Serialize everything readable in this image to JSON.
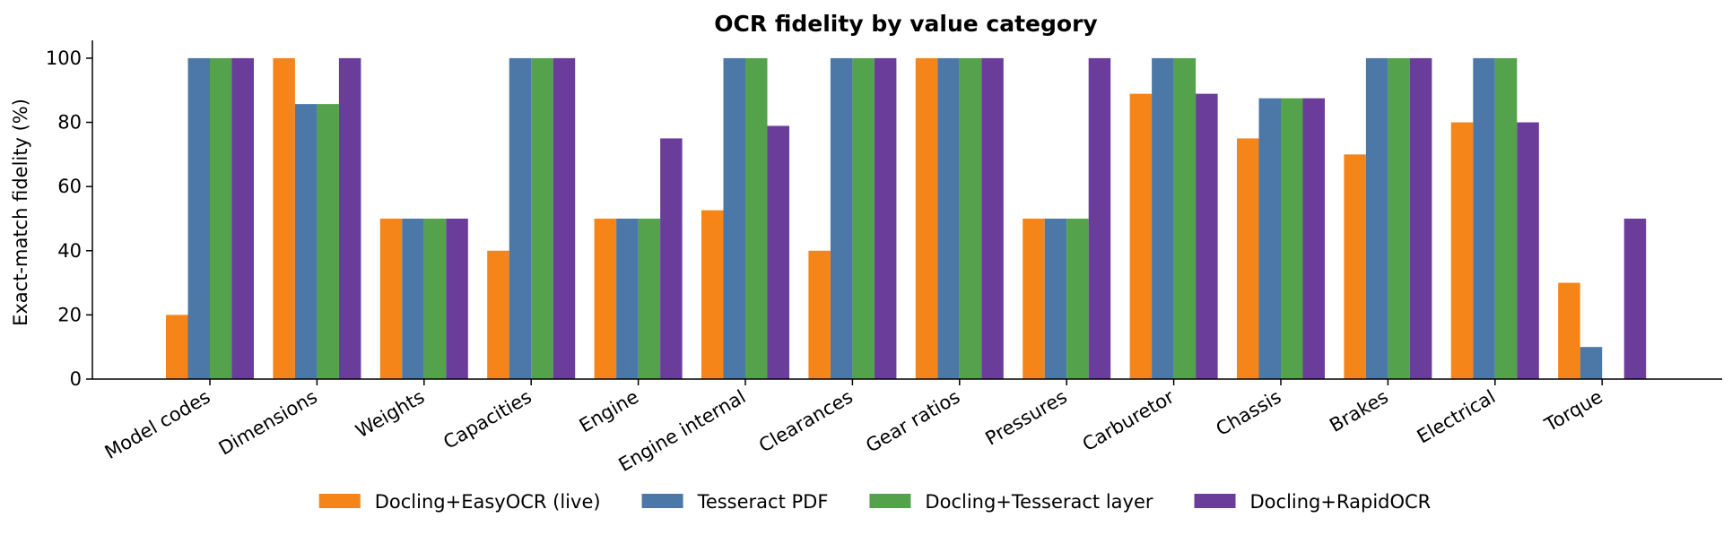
{
  "chart_data": {
    "type": "bar",
    "title": "OCR fidelity by value category",
    "xlabel": "",
    "ylabel": "Exact-match fidelity (%)",
    "ylim": [
      0,
      105
    ],
    "yticks": [
      0,
      20,
      40,
      60,
      80,
      100
    ],
    "grid": false,
    "legend_position": "bottom",
    "categories": [
      "Model codes",
      "Dimensions",
      "Weights",
      "Capacities",
      "Engine",
      "Engine internal",
      "Clearances",
      "Gear ratios",
      "Pressures",
      "Carburetor",
      "Chassis",
      "Brakes",
      "Electrical",
      "Torque"
    ],
    "series": [
      {
        "name": "Docling+EasyOCR (live)",
        "color": "#f58518",
        "values": [
          20,
          100,
          50,
          40,
          50,
          52.6,
          40,
          100,
          50,
          88.9,
          75,
          70,
          80,
          30
        ]
      },
      {
        "name": "Tesseract PDF",
        "color": "#4c78a8",
        "values": [
          100,
          85.7,
          50,
          100,
          50,
          100,
          100,
          100,
          50,
          100,
          87.5,
          100,
          100,
          10
        ]
      },
      {
        "name": "Docling+Tesseract layer",
        "color": "#54a24b",
        "values": [
          100,
          85.7,
          50,
          100,
          50,
          100,
          100,
          100,
          50,
          100,
          87.5,
          100,
          100,
          0
        ]
      },
      {
        "name": "Docling+RapidOCR",
        "color": "#6a3d9a",
        "values": [
          100,
          100,
          50,
          100,
          75,
          78.9,
          100,
          100,
          100,
          88.9,
          87.5,
          100,
          80,
          50
        ]
      }
    ]
  }
}
